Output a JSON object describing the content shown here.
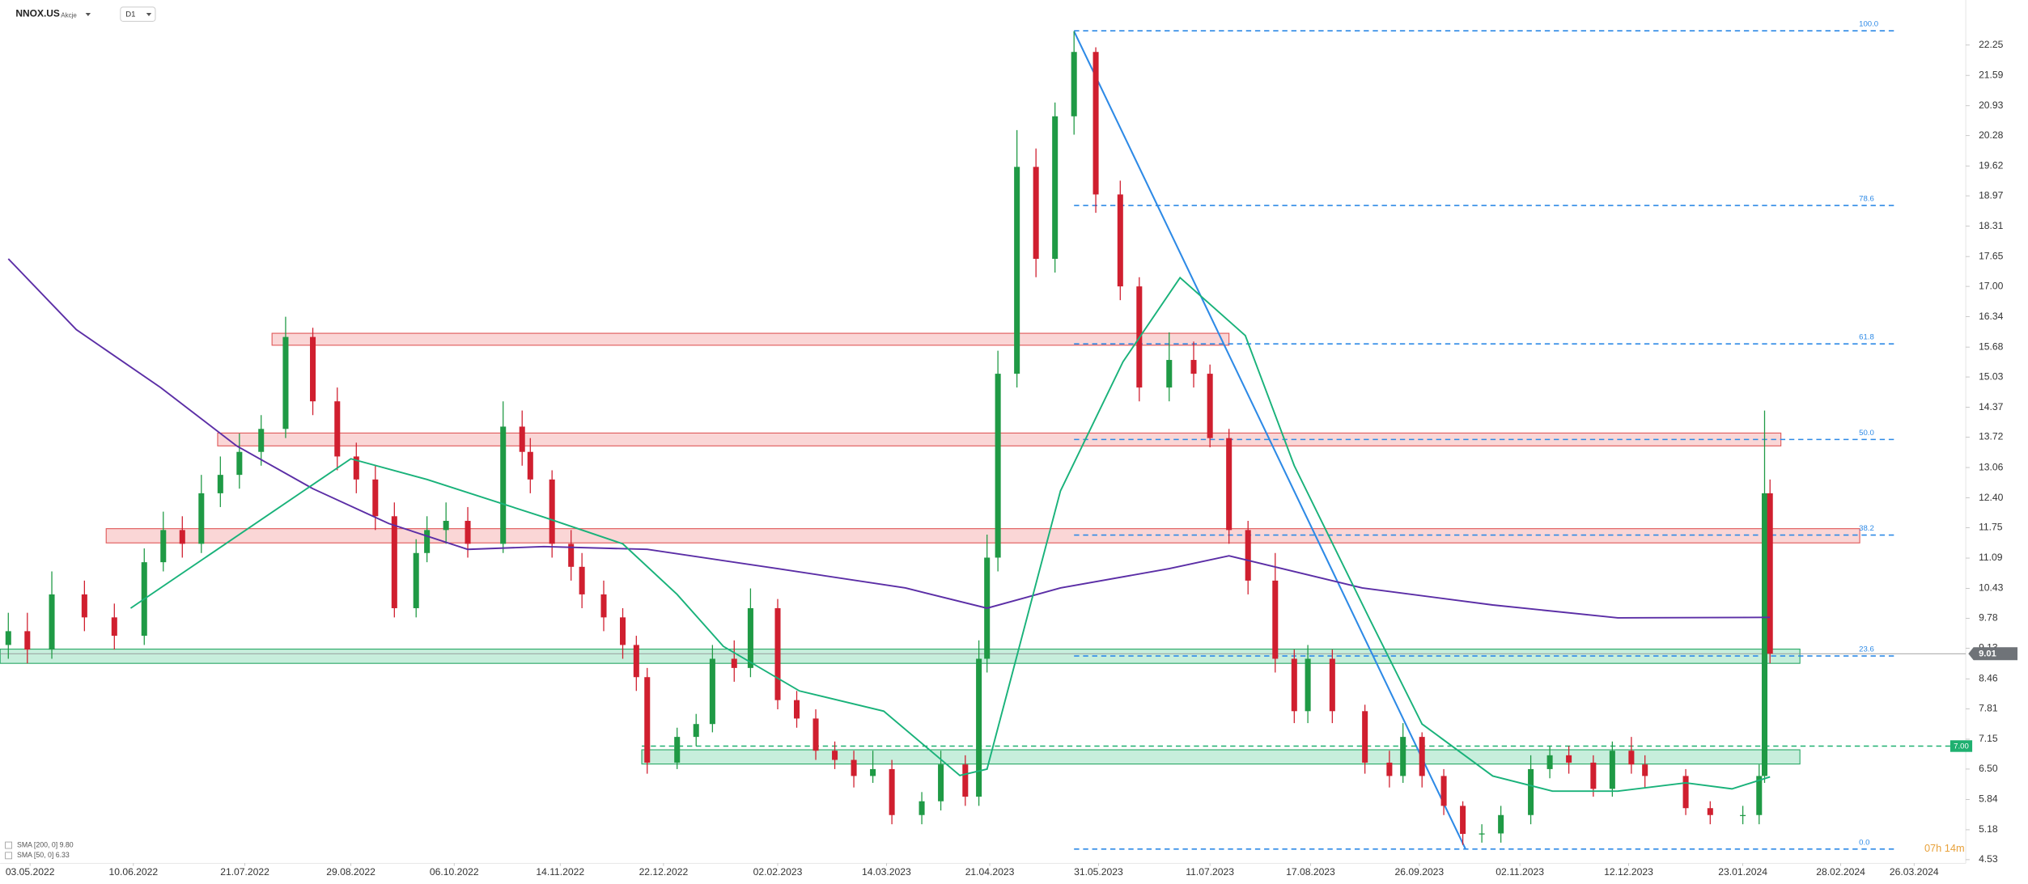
{
  "header": {
    "symbol": "NNOX.US",
    "asset_type": "Akcje",
    "timeframe": "D1"
  },
  "chart_data": {
    "type": "candlestick",
    "x": [
      "2022-04-25",
      "2022-05-02",
      "2022-05-11",
      "2022-05-23",
      "2022-06-03",
      "2022-06-14",
      "2022-06-21",
      "2022-06-28",
      "2022-07-05",
      "2022-07-12",
      "2022-07-19",
      "2022-07-27",
      "2022-08-05",
      "2022-08-15",
      "2022-08-24",
      "2022-08-31",
      "2022-09-07",
      "2022-09-14",
      "2022-09-22",
      "2022-09-26",
      "2022-10-03",
      "2022-10-11",
      "2022-10-24",
      "2022-10-31",
      "2022-11-03",
      "2022-11-11",
      "2022-11-18",
      "2022-11-22",
      "2022-11-30",
      "2022-12-07",
      "2022-12-12",
      "2022-12-16",
      "2022-12-27",
      "2023-01-03",
      "2023-01-09",
      "2023-01-17",
      "2023-01-23",
      "2023-02-02",
      "2023-02-09",
      "2023-02-16",
      "2023-02-23",
      "2023-03-02",
      "2023-03-09",
      "2023-03-16",
      "2023-03-27",
      "2023-04-03",
      "2023-04-12",
      "2023-04-17",
      "2023-04-20",
      "2023-04-24",
      "2023-05-01",
      "2023-05-08",
      "2023-05-15",
      "2023-05-22",
      "2023-05-30",
      "2023-06-08",
      "2023-06-15",
      "2023-06-26",
      "2023-07-05",
      "2023-07-11",
      "2023-07-18",
      "2023-07-25",
      "2023-08-04",
      "2023-08-11",
      "2023-08-16",
      "2023-08-25",
      "2023-09-06",
      "2023-09-15",
      "2023-09-20",
      "2023-09-27",
      "2023-10-05",
      "2023-10-12",
      "2023-10-19",
      "2023-10-26",
      "2023-11-06",
      "2023-11-13",
      "2023-11-20",
      "2023-11-29",
      "2023-12-06",
      "2023-12-13",
      "2023-12-18",
      "2024-01-02",
      "2024-01-11",
      "2024-01-23",
      "2024-01-29",
      "2024-01-31",
      "2024-02-02"
    ],
    "open": [
      9.2,
      9.5,
      9.1,
      10.3,
      9.8,
      9.4,
      11.0,
      11.7,
      11.4,
      12.5,
      12.9,
      13.4,
      13.9,
      15.9,
      14.5,
      13.3,
      12.8,
      12.0,
      10.0,
      11.2,
      11.7,
      11.9,
      11.4,
      13.95,
      13.4,
      12.8,
      11.4,
      10.9,
      10.3,
      9.8,
      9.2,
      8.5,
      6.64,
      7.2,
      7.48,
      8.9,
      8.7,
      10.0,
      8.0,
      7.6,
      6.9,
      6.7,
      6.35,
      6.5,
      5.5,
      5.8,
      6.6,
      5.9,
      8.9,
      11.1,
      15.1,
      19.6,
      17.6,
      20.7,
      22.1,
      19.0,
      17.0,
      14.8,
      15.4,
      15.1,
      13.7,
      11.7,
      10.6,
      8.9,
      7.76,
      8.9,
      7.76,
      6.64,
      6.35,
      7.2,
      6.35,
      5.7,
      5.09,
      5.1,
      5.5,
      6.5,
      6.8,
      6.64,
      6.07,
      6.9,
      6.6,
      6.35,
      5.65,
      5.5,
      5.5,
      6.35,
      12.5
    ],
    "high": [
      9.9,
      9.9,
      10.8,
      10.6,
      10.1,
      11.3,
      12.1,
      12.0,
      12.9,
      13.3,
      13.8,
      14.2,
      16.34,
      16.1,
      14.8,
      13.6,
      13.1,
      12.3,
      11.5,
      12.0,
      12.3,
      12.2,
      14.5,
      14.3,
      13.7,
      13.0,
      11.7,
      11.2,
      10.6,
      10.0,
      9.4,
      8.7,
      7.4,
      7.7,
      9.2,
      9.3,
      10.43,
      10.2,
      8.2,
      7.8,
      7.1,
      6.9,
      6.9,
      6.7,
      6.0,
      6.9,
      6.8,
      9.3,
      11.6,
      15.6,
      20.4,
      20.0,
      21.0,
      22.55,
      22.2,
      19.3,
      17.2,
      16.0,
      15.8,
      15.3,
      13.9,
      11.9,
      11.2,
      9.1,
      9.2,
      9.1,
      7.9,
      6.9,
      7.5,
      7.3,
      6.5,
      5.8,
      5.3,
      5.7,
      6.8,
      7.0,
      7.0,
      6.8,
      7.1,
      7.2,
      6.8,
      6.5,
      5.8,
      5.7,
      6.6,
      14.3,
      12.8
    ],
    "low": [
      8.9,
      8.8,
      8.9,
      9.5,
      9.1,
      9.2,
      10.8,
      11.1,
      11.2,
      12.2,
      12.6,
      13.1,
      13.7,
      14.2,
      13.0,
      12.5,
      11.7,
      9.8,
      9.8,
      11.0,
      11.4,
      11.1,
      11.2,
      13.1,
      12.5,
      11.1,
      10.6,
      10.0,
      9.5,
      8.9,
      8.2,
      6.4,
      6.5,
      7.0,
      7.3,
      8.4,
      8.5,
      7.8,
      7.4,
      6.7,
      6.5,
      6.1,
      6.2,
      5.3,
      5.3,
      5.6,
      5.7,
      5.7,
      8.6,
      10.8,
      14.8,
      17.2,
      17.3,
      20.3,
      18.6,
      16.7,
      14.5,
      14.5,
      14.8,
      13.5,
      11.4,
      10.3,
      8.6,
      7.5,
      7.5,
      7.5,
      6.4,
      6.1,
      6.2,
      6.1,
      5.5,
      4.85,
      4.9,
      4.9,
      5.3,
      6.3,
      6.4,
      5.9,
      5.9,
      6.4,
      6.1,
      5.5,
      5.3,
      5.3,
      5.3,
      6.2,
      8.8
    ],
    "close": [
      9.5,
      9.1,
      10.3,
      9.8,
      9.4,
      11.0,
      11.7,
      11.4,
      12.5,
      12.9,
      13.4,
      13.9,
      15.9,
      14.5,
      13.3,
      12.8,
      12.0,
      10.0,
      11.2,
      11.7,
      11.9,
      11.4,
      13.95,
      13.4,
      12.8,
      11.4,
      10.9,
      10.3,
      9.8,
      9.2,
      8.5,
      6.64,
      7.2,
      7.48,
      8.9,
      8.7,
      10.0,
      8.0,
      7.6,
      6.9,
      6.7,
      6.35,
      6.5,
      5.5,
      5.8,
      6.6,
      5.9,
      8.9,
      11.1,
      15.1,
      19.6,
      17.6,
      20.7,
      22.1,
      19.0,
      17.0,
      14.8,
      15.4,
      15.1,
      13.7,
      11.7,
      10.6,
      8.9,
      7.76,
      8.9,
      7.76,
      6.64,
      6.35,
      7.2,
      6.35,
      5.7,
      5.09,
      5.1,
      5.5,
      6.5,
      6.8,
      6.64,
      6.07,
      6.9,
      6.6,
      6.35,
      5.65,
      5.5,
      5.5,
      6.35,
      12.5,
      9.01
    ],
    "up_color": "#1f9a45",
    "down_color": "#d01f2f",
    "xlim": [
      "2022-04-22",
      "2024-04-14"
    ],
    "xticks": [
      {
        "value": "2022-05-03",
        "label": "03.05.2022"
      },
      {
        "value": "2022-06-10",
        "label": "10.06.2022"
      },
      {
        "value": "2022-07-21",
        "label": "21.07.2022"
      },
      {
        "value": "2022-08-29",
        "label": "29.08.2022"
      },
      {
        "value": "2022-10-06",
        "label": "06.10.2022"
      },
      {
        "value": "2022-11-14",
        "label": "14.11.2022"
      },
      {
        "value": "2022-12-22",
        "label": "22.12.2022"
      },
      {
        "value": "2023-02-02",
        "label": "02.02.2023"
      },
      {
        "value": "2023-03-14",
        "label": "14.03.2023"
      },
      {
        "value": "2023-04-21",
        "label": "21.04.2023"
      },
      {
        "value": "2023-05-31",
        "label": "31.05.2023"
      },
      {
        "value": "2023-07-11",
        "label": "11.07.2023"
      },
      {
        "value": "2023-08-17",
        "label": "17.08.2023"
      },
      {
        "value": "2023-09-26",
        "label": "26.09.2023"
      },
      {
        "value": "2023-11-02",
        "label": "02.11.2023"
      },
      {
        "value": "2023-12-12",
        "label": "12.12.2023"
      },
      {
        "value": "2024-01-23",
        "label": "23.01.2024"
      },
      {
        "value": "2024-02-28",
        "label": "28.02.2024"
      },
      {
        "value": "2024-03-26",
        "label": "26.03.2024"
      }
    ],
    "ylim": [
      4.45,
      23.23
    ],
    "yticks": [
      22.25,
      21.59,
      20.93,
      20.28,
      19.62,
      18.97,
      18.31,
      17.65,
      {
        "value": 17,
        "label": "17.00"
      },
      16.34,
      15.68,
      15.03,
      14.37,
      13.72,
      13.06,
      {
        "value": 12.4,
        "label": "12.40"
      },
      11.75,
      11.09,
      10.43,
      9.78,
      9.13,
      8.46,
      7.81,
      7.15,
      {
        "value": 6.5,
        "label": "6.50"
      },
      5.84,
      5.18,
      4.53
    ],
    "series": [
      {
        "name": "SMA [200, 0] 9.80",
        "color": "#5b2ea6",
        "x": [
          "2022-04-25",
          "2022-05-20",
          "2022-06-20",
          "2022-07-18",
          "2022-08-15",
          "2022-09-12",
          "2022-10-11",
          "2022-11-08",
          "2022-12-16",
          "2023-02-02",
          "2023-03-21",
          "2023-04-20",
          "2023-05-17",
          "2023-06-26",
          "2023-07-18",
          "2023-09-05",
          "2023-10-23",
          "2023-12-08",
          "2024-02-02"
        ],
        "values": [
          17.6,
          16.06,
          14.8,
          13.53,
          12.6,
          11.84,
          11.28,
          11.34,
          11.28,
          10.86,
          10.44,
          10.0,
          10.44,
          10.86,
          11.14,
          10.44,
          10.07,
          9.79,
          9.8
        ]
      },
      {
        "name": "SMA [50, 0] 6.33",
        "color": "#19b27a",
        "x": [
          "2022-06-09",
          "2022-08-29",
          "2022-09-26",
          "2022-11-08",
          "2022-12-07",
          "2022-12-27",
          "2023-01-13",
          "2023-02-10",
          "2023-03-13",
          "2023-04-10",
          "2023-04-20",
          "2023-05-17",
          "2023-06-09",
          "2023-06-30",
          "2023-07-24",
          "2023-08-11",
          "2023-09-08",
          "2023-09-27",
          "2023-10-23",
          "2023-11-14",
          "2023-12-08",
          "2024-01-02",
          "2024-01-19",
          "2024-02-02"
        ],
        "values": [
          10.0,
          13.25,
          12.8,
          11.98,
          11.4,
          10.3,
          9.17,
          8.2,
          7.76,
          6.36,
          6.5,
          12.55,
          15.36,
          17.19,
          15.93,
          13.1,
          9.73,
          7.48,
          6.35,
          6.02,
          6.02,
          6.2,
          6.07,
          6.33
        ]
      }
    ],
    "zones": [
      {
        "from": "2022-07-31",
        "to": "2023-07-18",
        "low": 15.72,
        "high": 15.98,
        "fill": "rgba(240,120,120,0.3)",
        "stroke": "#e05a5a"
      },
      {
        "from": "2022-07-11",
        "to": "2024-02-06",
        "low": 13.53,
        "high": 13.81,
        "fill": "rgba(240,120,120,0.3)",
        "stroke": "#e05a5a"
      },
      {
        "from": "2022-05-31",
        "to": "2024-03-06",
        "low": 11.42,
        "high": 11.73,
        "fill": "rgba(240,120,120,0.3)",
        "stroke": "#e05a5a"
      },
      {
        "from": "2022-04-22",
        "to": "2024-02-13",
        "low": 8.8,
        "high": 9.11,
        "fill": "rgba(70,200,140,0.3)",
        "stroke": "#2aa866"
      },
      {
        "from": "2022-12-14",
        "to": "2024-02-13",
        "low": 6.61,
        "high": 6.92,
        "fill": "rgba(70,200,140,0.3)",
        "stroke": "#2aa866"
      }
    ],
    "fibonacci": {
      "color": "#2e8ae6",
      "from": "2023-05-22",
      "to": "2024-03-20",
      "levels": [
        {
          "label": "100.0",
          "price": 22.56
        },
        {
          "label": "78.6",
          "price": 18.76
        },
        {
          "label": "61.8",
          "price": 15.75
        },
        {
          "label": "50.0",
          "price": 13.67
        },
        {
          "label": "38.2",
          "price": 11.59
        },
        {
          "label": "23.6",
          "price": 8.96
        },
        {
          "label": "0.0",
          "price": 4.76
        }
      ]
    },
    "trendline": {
      "color": "#2e8ae6",
      "from_date": "2023-05-22",
      "from_price": 22.55,
      "to_date": "2023-10-13",
      "to_price": 4.76
    },
    "alert_line": {
      "value": 7,
      "label": "7.00",
      "from": "2022-12-14",
      "color": "#1fb070"
    },
    "last_price": 9.01,
    "countdown": "07h 14m"
  }
}
